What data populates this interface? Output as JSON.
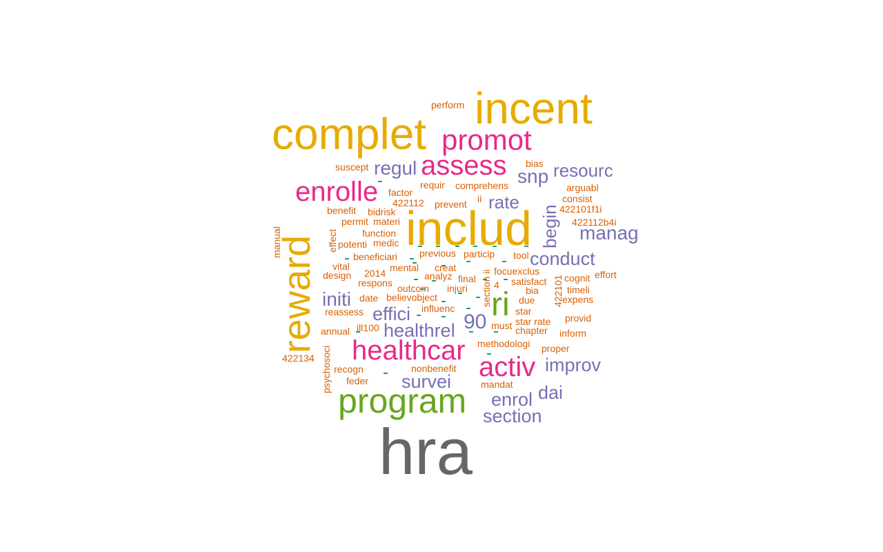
{
  "palette": {
    "gray": "#666666",
    "gold": "#e6ab02",
    "green": "#66a61e",
    "magenta": "#e7298a",
    "purple": "#7570b3",
    "orange": "#d95f02",
    "teal": "#1b9e77"
  },
  "words": [
    {
      "id": "hra",
      "text": "hra"
    },
    {
      "id": "includ",
      "text": "includ"
    },
    {
      "id": "complet",
      "text": "complet"
    },
    {
      "id": "incent",
      "text": "incent"
    },
    {
      "id": "reward",
      "text": "reward"
    },
    {
      "id": "program",
      "text": "program"
    },
    {
      "id": "promot",
      "text": "promot"
    },
    {
      "id": "assess",
      "text": "assess"
    },
    {
      "id": "enrolle",
      "text": "enrolle"
    },
    {
      "id": "healthcar",
      "text": "healthcar"
    },
    {
      "id": "activ",
      "text": "activ"
    },
    {
      "id": "ri",
      "text": "ri"
    },
    {
      "id": "regul",
      "text": "regul"
    },
    {
      "id": "resourc",
      "text": "resourc"
    },
    {
      "id": "snp",
      "text": "snp"
    },
    {
      "id": "rate",
      "text": "rate"
    },
    {
      "id": "begin",
      "text": "begin"
    },
    {
      "id": "manag",
      "text": "manag"
    },
    {
      "id": "conduct",
      "text": "conduct"
    },
    {
      "id": "initi",
      "text": "initi"
    },
    {
      "id": "effici",
      "text": "effici"
    },
    {
      "id": "90",
      "text": "90"
    },
    {
      "id": "healthrel",
      "text": "healthrel"
    },
    {
      "id": "improv",
      "text": "improv"
    },
    {
      "id": "survei",
      "text": "survei"
    },
    {
      "id": "enrol",
      "text": "enrol"
    },
    {
      "id": "dai",
      "text": "dai"
    },
    {
      "id": "section",
      "text": "section"
    },
    {
      "id": "perform",
      "text": "perform"
    },
    {
      "id": "suscept",
      "text": "suscept"
    },
    {
      "id": "bias",
      "text": "bias"
    },
    {
      "id": "requir",
      "text": "requir"
    },
    {
      "id": "comprehens",
      "text": "comprehens"
    },
    {
      "id": "arguabl",
      "text": "arguabl"
    },
    {
      "id": "factor",
      "text": "factor"
    },
    {
      "id": "consist",
      "text": "consist"
    },
    {
      "id": "422112",
      "text": "422112"
    },
    {
      "id": "prevent",
      "text": "prevent"
    },
    {
      "id": "ii",
      "text": "ii"
    },
    {
      "id": "422101f1i",
      "text": "422101f1i"
    },
    {
      "id": "benefit",
      "text": "benefit"
    },
    {
      "id": "bidrisk",
      "text": "bidrisk"
    },
    {
      "id": "permit",
      "text": "permit"
    },
    {
      "id": "materi",
      "text": "materi"
    },
    {
      "id": "422112b4i",
      "text": "422112b4i"
    },
    {
      "id": "manual",
      "text": "manual"
    },
    {
      "id": "effect",
      "text": "effect"
    },
    {
      "id": "function",
      "text": "function"
    },
    {
      "id": "potenti",
      "text": "potenti"
    },
    {
      "id": "medic",
      "text": "medic"
    },
    {
      "id": "beneficiari",
      "text": "beneficiari"
    },
    {
      "id": "previous",
      "text": "previous"
    },
    {
      "id": "particip",
      "text": "particip"
    },
    {
      "id": "tool",
      "text": "tool"
    },
    {
      "id": "vital",
      "text": "vital"
    },
    {
      "id": "mental",
      "text": "mental"
    },
    {
      "id": "creat",
      "text": "creat"
    },
    {
      "id": "focuexclus",
      "text": "focuexclus"
    },
    {
      "id": "design",
      "text": "design"
    },
    {
      "id": "2014",
      "text": "2014"
    },
    {
      "id": "analyz",
      "text": "analyz"
    },
    {
      "id": "final",
      "text": "final"
    },
    {
      "id": "satisfact",
      "text": "satisfact"
    },
    {
      "id": "cognit",
      "text": "cognit"
    },
    {
      "id": "effort",
      "text": "effort"
    },
    {
      "id": "respons",
      "text": "respons"
    },
    {
      "id": "outcom",
      "text": "outcom"
    },
    {
      "id": "injuri",
      "text": "injuri"
    },
    {
      "id": "4",
      "text": "4"
    },
    {
      "id": "bia",
      "text": "bia"
    },
    {
      "id": "timeli",
      "text": "timeli"
    },
    {
      "id": "date",
      "text": "date"
    },
    {
      "id": "believobject",
      "text": "believobject"
    },
    {
      "id": "due",
      "text": "due"
    },
    {
      "id": "expens",
      "text": "expens"
    },
    {
      "id": "reassess",
      "text": "reassess"
    },
    {
      "id": "influenc",
      "text": "influenc"
    },
    {
      "id": "star",
      "text": "star"
    },
    {
      "id": "provid",
      "text": "provid"
    },
    {
      "id": "annual",
      "text": "annual"
    },
    {
      "id": "ill100",
      "text": "ill100"
    },
    {
      "id": "must",
      "text": "must"
    },
    {
      "id": "starrate",
      "text": "star rate"
    },
    {
      "id": "chapter",
      "text": "chapter"
    },
    {
      "id": "inform",
      "text": "inform"
    },
    {
      "id": "methodologi",
      "text": "methodologi"
    },
    {
      "id": "proper",
      "text": "proper"
    },
    {
      "id": "422134",
      "text": "422134"
    },
    {
      "id": "psychosoci",
      "text": "psychosoci"
    },
    {
      "id": "recogn",
      "text": "recogn"
    },
    {
      "id": "nonbenefit",
      "text": "nonbenefit"
    },
    {
      "id": "feder",
      "text": "feder"
    },
    {
      "id": "mandat",
      "text": "mandat"
    },
    {
      "id": "sectionii",
      "text": "section ii"
    },
    {
      "id": "422101",
      "text": "422101"
    }
  ]
}
